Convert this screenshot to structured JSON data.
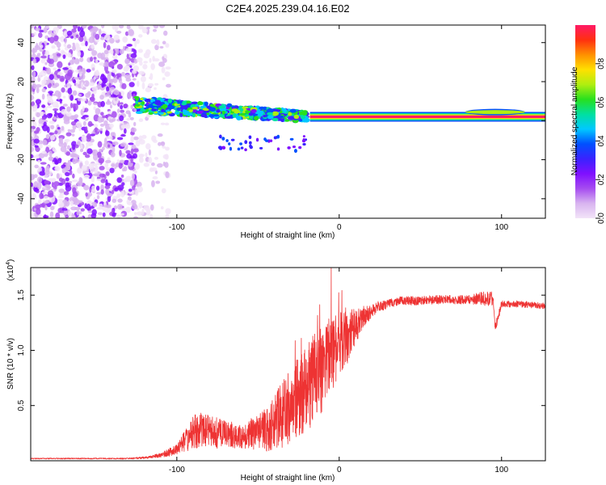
{
  "title": "C2E4.2025.239.04.16.E02",
  "chart_data": [
    {
      "type": "heatmap",
      "name": "spectrogram",
      "xlabel": "Height of straight line (km)",
      "ylabel": "Frequency (Hz)",
      "xlim": [
        -190,
        127
      ],
      "ylim": [
        -50,
        49
      ],
      "xticks": [
        -100,
        0,
        100
      ],
      "yticks": [
        -40,
        -20,
        0,
        20,
        40
      ],
      "xtick_labels": [
        "-100",
        "0",
        "100"
      ],
      "ytick_labels": [
        "-40",
        "-20",
        "0",
        "20",
        "40"
      ],
      "noise_region_km": [
        -190,
        -105
      ],
      "broadband_region_km": [
        -125,
        -20
      ],
      "broadband_band_hz": [
        -3,
        9
      ],
      "carrier_start_km": -18,
      "carrier_freq_hz": 2,
      "secondary_tone_start_km": 80,
      "secondary_tone_freq_hz": 4,
      "colorbar": {
        "label": "Normalized spectral amplitude",
        "range": [
          0.0,
          1.0
        ],
        "ticks": [
          0.0,
          0.2,
          0.4,
          0.6,
          0.8
        ],
        "tick_labels": [
          "0.0",
          "0.2",
          "0.4",
          "0.6",
          "0.8"
        ],
        "colors": [
          "#f2e4f8",
          "#d8b4f0",
          "#a64cf0",
          "#7f10ff",
          "#3a22ff",
          "#0050ff",
          "#00c8ff",
          "#00e0a0",
          "#28e01e",
          "#b0ee10",
          "#ffe000",
          "#ff9000",
          "#ff3010",
          "#ff1a66"
        ]
      }
    },
    {
      "type": "line",
      "name": "snr-profile",
      "xlabel": "Height of straight line (km)",
      "ylabel": "SNR (10 * v/v)",
      "multiplier_label": "(x10",
      "multiplier_exponent": "4",
      "xlim": [
        -190,
        127
      ],
      "ylim": [
        0.0,
        1.75
      ],
      "xticks": [
        -100,
        0,
        100
      ],
      "yticks": [
        0.5,
        1.0,
        1.5
      ],
      "xtick_labels": [
        "-100",
        "0",
        "100"
      ],
      "ytick_labels": [
        "0.5",
        "1.0",
        "1.5"
      ],
      "color": "#ee3333",
      "series": [
        {
          "name": "SNR",
          "x": [
            -190,
            -160,
            -130,
            -118,
            -110,
            -100,
            -95,
            -90,
            -85,
            -80,
            -75,
            -70,
            -65,
            -60,
            -55,
            -50,
            -45,
            -40,
            -35,
            -30,
            -25,
            -20,
            -15,
            -10,
            -5,
            0,
            5,
            10,
            15,
            20,
            25,
            30,
            35,
            40,
            50,
            60,
            70,
            80,
            88,
            92,
            95,
            96,
            100,
            110,
            120,
            127
          ],
          "y": [
            0.02,
            0.02,
            0.02,
            0.03,
            0.05,
            0.1,
            0.18,
            0.26,
            0.28,
            0.27,
            0.25,
            0.24,
            0.23,
            0.22,
            0.24,
            0.25,
            0.28,
            0.36,
            0.42,
            0.5,
            0.58,
            0.65,
            0.75,
            0.85,
            0.98,
            1.05,
            1.12,
            1.22,
            1.3,
            1.36,
            1.4,
            1.42,
            1.44,
            1.45,
            1.45,
            1.46,
            1.46,
            1.46,
            1.47,
            1.48,
            1.46,
            1.2,
            1.42,
            1.42,
            1.41,
            1.4
          ],
          "amp": [
            0.005,
            0.005,
            0.006,
            0.01,
            0.02,
            0.05,
            0.1,
            0.16,
            0.16,
            0.14,
            0.14,
            0.12,
            0.12,
            0.12,
            0.14,
            0.16,
            0.2,
            0.26,
            0.3,
            0.34,
            0.36,
            0.4,
            0.44,
            0.42,
            0.36,
            0.3,
            0.24,
            0.16,
            0.1,
            0.06,
            0.05,
            0.04,
            0.04,
            0.04,
            0.04,
            0.04,
            0.04,
            0.04,
            0.06,
            0.08,
            0.05,
            0.05,
            0.03,
            0.03,
            0.03,
            0.03
          ]
        }
      ]
    }
  ]
}
